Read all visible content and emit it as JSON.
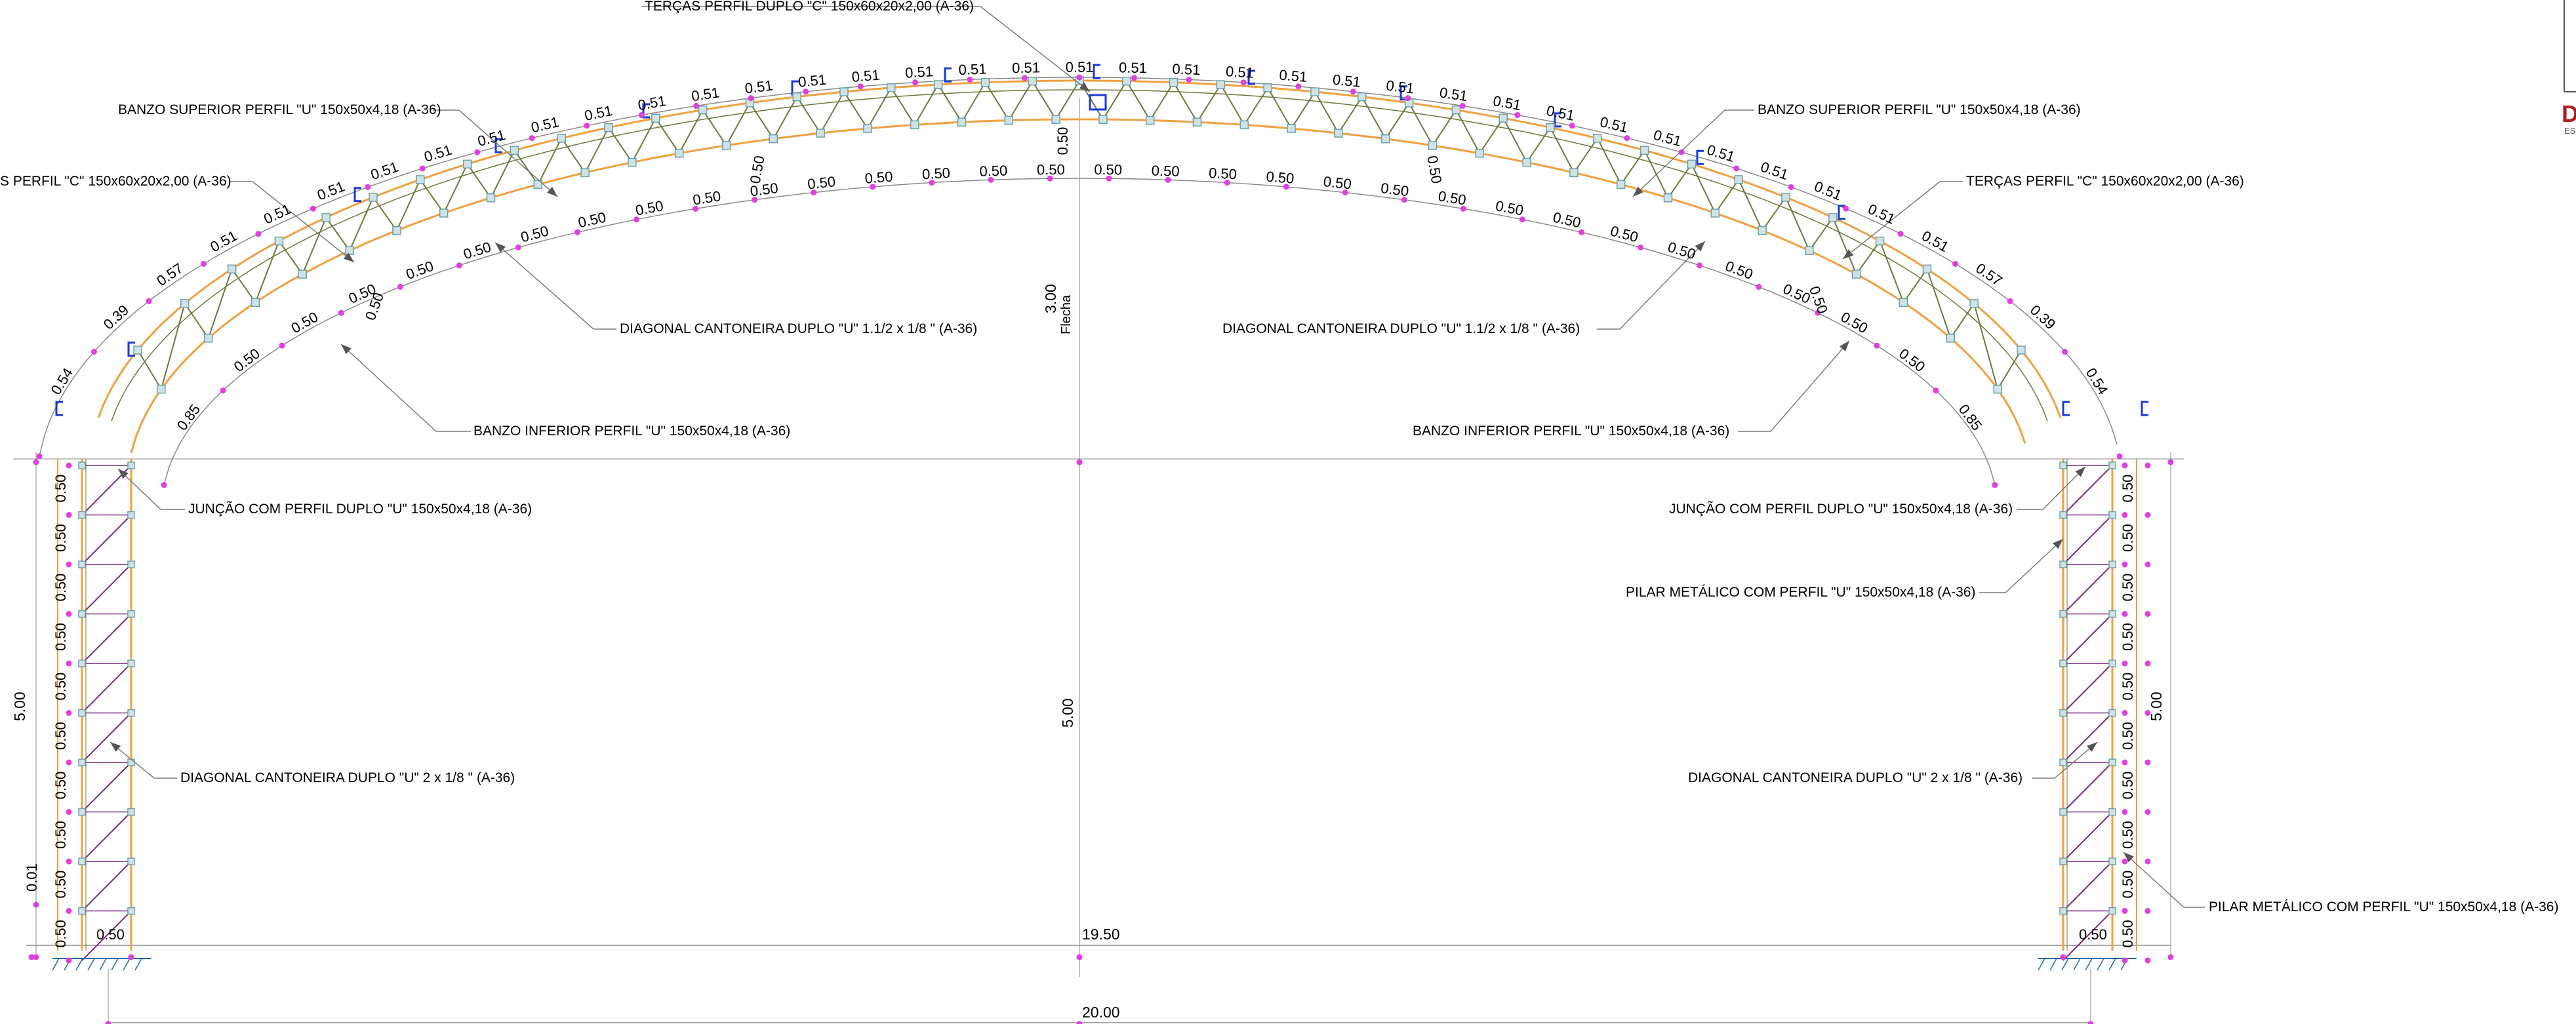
{
  "labels": {
    "tercas_duplo": "TERÇAS PERFIL DUPLO \"C\" 150x60x20x2,00 (A-36)",
    "banzo_sup_left": "BANZO SUPERIOR PERFIL \"U\" 150x50x4,18 (A-36)",
    "tercas_left": "S PERFIL \"C\" 150x60x20x2,00 (A-36)",
    "diag_truss_left": "DIAGONAL CANTONEIRA DUPLO \"U\" 1.1/2 x 1/8 \"  (A-36)",
    "banzo_inf_left": "BANZO INFERIOR PERFIL \"U\" 150x50x4,18 (A-36)",
    "juncao_left": "JUNÇÃO COM PERFIL DUPLO \"U\" 150x50x4,18 (A-36)",
    "diag_col_left": "DIAGONAL CANTONEIRA DUPLO \"U\" 2 x 1/8 \"  (A-36)",
    "banzo_sup_right": "BANZO SUPERIOR PERFIL \"U\" 150x50x4,18 (A-36)",
    "tercas_right": "TERÇAS PERFIL \"C\" 150x60x20x2,00 (A-36)",
    "diag_truss_right": "DIAGONAL CANTONEIRA DUPLO \"U\" 1.1/2 x 1/8 \"  (A-36)",
    "banzo_inf_right": "BANZO INFERIOR PERFIL \"U\" 150x50x4,18 (A-36)",
    "juncao_right": "JUNÇÃO COM PERFIL DUPLO \"U\" 150x50x4,18 (A-36)",
    "pilar_right_upper": "PILAR METÁLICO COM PERFIL \"U\" 150x50x4,18 (A-36)",
    "diag_col_right": "DIAGONAL CANTONEIRA DUPLO \"U\" 2 x 1/8 \"  (A-36)",
    "pilar_right_lower": "PILAR METÁLICO COM PERFIL \"U\" 150x50x4,18 (A-36)"
  },
  "dimensions": {
    "flecha_value": "3.00",
    "flecha_label": "Flecha",
    "column_height_left": "5.00",
    "column_height_center": "5.00",
    "column_height_right": "5.00",
    "inner_span": "19.50",
    "outer_span": "20.00",
    "offset_left": "0.01",
    "base_width_left": "0.50",
    "base_width_right": "0.50",
    "top_spacings": [
      "0.54",
      "0.39",
      "0.57",
      "0.51",
      "0.51",
      "0.51",
      "0.51",
      "0.51",
      "0.51",
      "0.51",
      "0.51",
      "0.51",
      "0.51",
      "0.51",
      "0.51",
      "0.51",
      "0.51",
      "0.51",
      "0.51",
      "0.51",
      "0.51",
      "0.51",
      "0.51",
      "0.51",
      "0.51",
      "0.51",
      "0.51",
      "0.51",
      "0.51",
      "0.51",
      "0.51",
      "0.51",
      "0.51",
      "0.51",
      "0.51",
      "0.51",
      "0.57",
      "0.39",
      "0.54"
    ],
    "bottom_spacings": [
      "0.85",
      "0.50",
      "0.50",
      "0.50",
      "0.50",
      "0.50",
      "0.50",
      "0.50",
      "0.50",
      "0.50",
      "0.50",
      "0.50",
      "0.50",
      "0.50",
      "0.50",
      "0.50",
      "0.50",
      "0.50",
      "0.50",
      "0.50",
      "0.50",
      "0.50",
      "0.50",
      "0.50",
      "0.50",
      "0.50",
      "0.50",
      "0.50",
      "0.50",
      "0.50",
      "0.50",
      "0.85"
    ],
    "column_spacings": [
      "0.50",
      "0.50",
      "0.50",
      "0.50",
      "0.50",
      "0.50",
      "0.50",
      "0.50",
      "0.50",
      "0.50"
    ],
    "truss_depth": "0.50"
  },
  "cutoff_text": {
    "letter": "D",
    "small": "ES"
  },
  "colors": {
    "orange": "#f0a040",
    "diagonal": "#6b7a3a",
    "column_diagonal": "#7a2a8a",
    "node": "#6fa0a8",
    "magenta": "#e040e0",
    "purlin": "#1a3ad8",
    "dimension": "#8a8a8a"
  }
}
